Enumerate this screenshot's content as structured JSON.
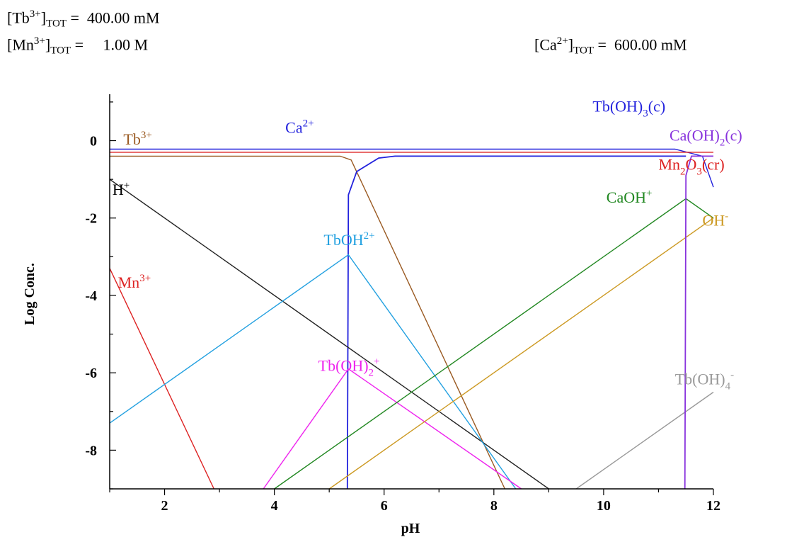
{
  "header": {
    "tb_label": "[Tb3+]TOT =",
    "tb_base": "[Tb",
    "tb_sup": "3+",
    "tb_sub": "TOT",
    "tb_eq": "=",
    "tb_value": "400.00 mM",
    "mn_base": "[Mn",
    "mn_sup": "3+",
    "mn_sub": "TOT",
    "mn_eq": "=",
    "mn_value": "1.00 M",
    "ca_base": "[Ca",
    "ca_sup": "2+",
    "ca_sub": "TOT",
    "ca_eq": "=",
    "ca_value": "600.00 mM"
  },
  "chart_data": {
    "type": "line",
    "xlabel": "pH",
    "ylabel": "Log Conc.",
    "xlim": [
      1,
      12
    ],
    "ylim": [
      -9,
      1.2
    ],
    "xticks": [
      2,
      4,
      6,
      8,
      10,
      12
    ],
    "yticks": [
      0,
      -2,
      -4,
      -6,
      -8
    ],
    "grid": false,
    "series": [
      {
        "name": "Tb3+",
        "color": "#9a5a22",
        "points": [
          [
            1,
            -0.4
          ],
          [
            5.2,
            -0.4
          ],
          [
            5.4,
            -0.5
          ],
          [
            8.2,
            -9
          ]
        ]
      },
      {
        "name": "Ca2+",
        "color": "#2222dd",
        "points": [
          [
            1,
            -0.22
          ],
          [
            11.3,
            -0.22
          ],
          [
            11.8,
            -0.4
          ],
          [
            12,
            -1.2
          ]
        ]
      },
      {
        "name": "Mn2O3(cr)",
        "color": "#dd2222",
        "points": [
          [
            1,
            -0.3
          ],
          [
            12,
            -0.3
          ]
        ]
      },
      {
        "name": "Tb(OH)3(c)",
        "color": "#2222dd",
        "points": [
          [
            5.33,
            -9
          ],
          [
            5.35,
            -1.4
          ],
          [
            5.5,
            -0.8
          ],
          [
            5.9,
            -0.45
          ],
          [
            6.2,
            -0.4
          ],
          [
            11.5,
            -0.4
          ]
        ]
      },
      {
        "name": "H+",
        "color": "#222222",
        "points": [
          [
            1,
            -1
          ],
          [
            9,
            -9
          ]
        ]
      },
      {
        "name": "Mn3+",
        "color": "#dd2222",
        "points": [
          [
            1,
            -3.3
          ],
          [
            2.9,
            -9
          ]
        ]
      },
      {
        "name": "TbOH2+",
        "color": "#22a0e0",
        "points": [
          [
            1,
            -7.3
          ],
          [
            5.35,
            -2.95
          ],
          [
            8.4,
            -9
          ]
        ]
      },
      {
        "name": "Tb(OH)2+",
        "color": "#ee22ee",
        "points": [
          [
            3.8,
            -9
          ],
          [
            5.35,
            -5.9
          ],
          [
            8.5,
            -9
          ]
        ]
      },
      {
        "name": "CaOH+",
        "color": "#228822",
        "points": [
          [
            4,
            -9
          ],
          [
            11.5,
            -1.5
          ],
          [
            12,
            -2
          ]
        ]
      },
      {
        "name": "OH-",
        "color": "#cc9922",
        "points": [
          [
            5,
            -9
          ],
          [
            12,
            -2
          ]
        ]
      },
      {
        "name": "Tb(OH)4-",
        "color": "#999999",
        "points": [
          [
            9.5,
            -9
          ],
          [
            12,
            -6.5
          ]
        ]
      },
      {
        "name": "Ca(OH)2(c)",
        "color": "#8833dd",
        "points": [
          [
            11.48,
            -9
          ],
          [
            11.5,
            -0.9
          ],
          [
            11.6,
            -0.4
          ],
          [
            12,
            -0.4
          ]
        ]
      }
    ],
    "labels": [
      {
        "text": "Tb",
        "sup": "3+",
        "sub": "",
        "suffix": "",
        "color": "#9a5a22",
        "at": [
          1.25,
          -0.1
        ]
      },
      {
        "text": "Ca",
        "sup": "2+",
        "sub": "",
        "suffix": "",
        "color": "#2222dd",
        "at": [
          4.2,
          0.2
        ]
      },
      {
        "text": "H",
        "sup": "+",
        "sub": "",
        "suffix": "",
        "color": "#000000",
        "at": [
          1.05,
          -1.4
        ]
      },
      {
        "text": "Mn",
        "sup": "3+",
        "sub": "",
        "suffix": "",
        "color": "#dd2222",
        "at": [
          1.15,
          -3.8
        ]
      },
      {
        "text": "TbOH",
        "sup": "2+",
        "sub": "",
        "suffix": "",
        "color": "#22a0e0",
        "at": [
          4.9,
          -2.7
        ]
      },
      {
        "text": "Tb(OH)",
        "sup": "+",
        "sub": "2",
        "suffix": "",
        "color": "#ee22ee",
        "at": [
          4.8,
          -5.95
        ]
      },
      {
        "text": "Tb(OH)",
        "sup": "",
        "sub": "3",
        "suffix": "(c)",
        "color": "#2222dd",
        "at": [
          9.8,
          0.75
        ]
      },
      {
        "text": "Ca(OH)",
        "sup": "",
        "sub": "2",
        "suffix": "(c)",
        "color": "#8833dd",
        "at": [
          11.2,
          0.0
        ]
      },
      {
        "text": "Mn",
        "sup": "",
        "sub": "2",
        "suffix": "O",
        "sub2": "3",
        "suffix2": "(cr)",
        "color": "#dd2222",
        "at": [
          11.0,
          -0.75
        ]
      },
      {
        "text": "CaOH",
        "sup": "+",
        "sub": "",
        "suffix": "",
        "color": "#228822",
        "at": [
          10.05,
          -1.6
        ]
      },
      {
        "text": "OH",
        "sup": "-",
        "sub": "",
        "suffix": "",
        "color": "#cc9922",
        "at": [
          11.8,
          -2.2
        ]
      },
      {
        "text": "Tb(OH)",
        "sup": "-",
        "sub": "4",
        "suffix": "",
        "color": "#999999",
        "at": [
          11.3,
          -6.3
        ]
      }
    ]
  }
}
